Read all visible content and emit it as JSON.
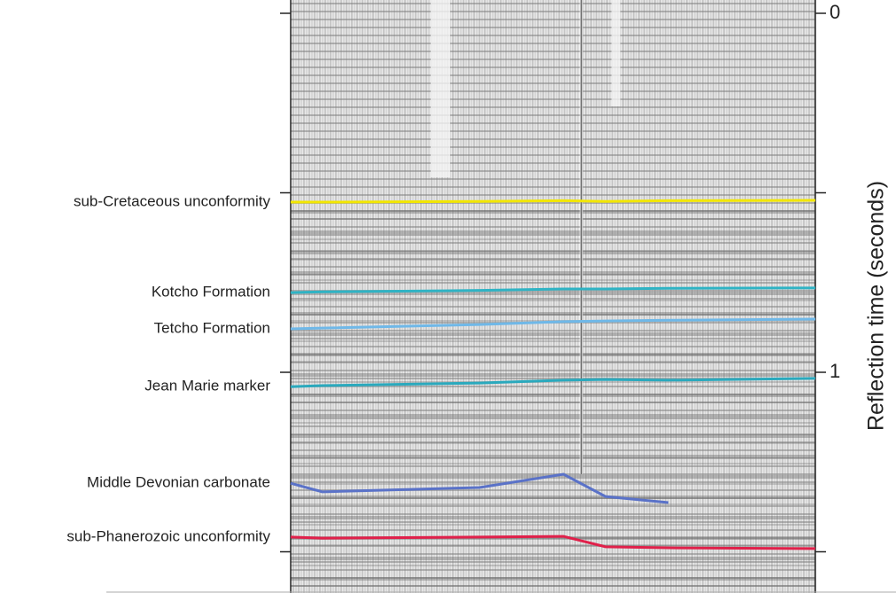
{
  "chart_data": {
    "type": "seismic-section",
    "ylabel": "Reflection time (seconds)",
    "ylim": [
      0,
      1.6
    ],
    "yticks": [
      0,
      1
    ],
    "minor_yticks": [
      0.5,
      1.5
    ],
    "x": [
      0,
      0.06,
      0.36,
      0.52,
      0.6,
      0.72,
      1
    ],
    "series": [
      {
        "name": "sub-Cretaceous unconformity",
        "color": "#f2e600",
        "values": [
          0.526,
          0.526,
          0.524,
          0.522,
          0.524,
          0.522,
          0.521
        ]
      },
      {
        "name": "Kotcho Formation",
        "color": "#2fb3c4",
        "values": [
          0.778,
          0.776,
          0.772,
          0.768,
          0.768,
          0.766,
          0.765
        ]
      },
      {
        "name": "Tetcho Formation",
        "color": "#6fb8e8",
        "values": [
          0.879,
          0.877,
          0.867,
          0.859,
          0.857,
          0.855,
          0.852
        ]
      },
      {
        "name": "Jean Marie marker",
        "color": "#2aa9bd",
        "values": [
          1.04,
          1.037,
          1.03,
          1.022,
          1.02,
          1.022,
          1.017
        ]
      },
      {
        "name": "Middle Devonian carbonate",
        "color": "#5a72c8",
        "values": [
          1.309,
          1.333,
          1.321,
          1.284,
          1.346,
          1.363,
          null
        ]
      },
      {
        "name": "sub-Phanerozoic unconformity",
        "color": "#e0204a",
        "values": [
          1.459,
          1.462,
          1.459,
          1.457,
          1.486,
          1.489,
          1.491
        ]
      }
    ]
  }
}
